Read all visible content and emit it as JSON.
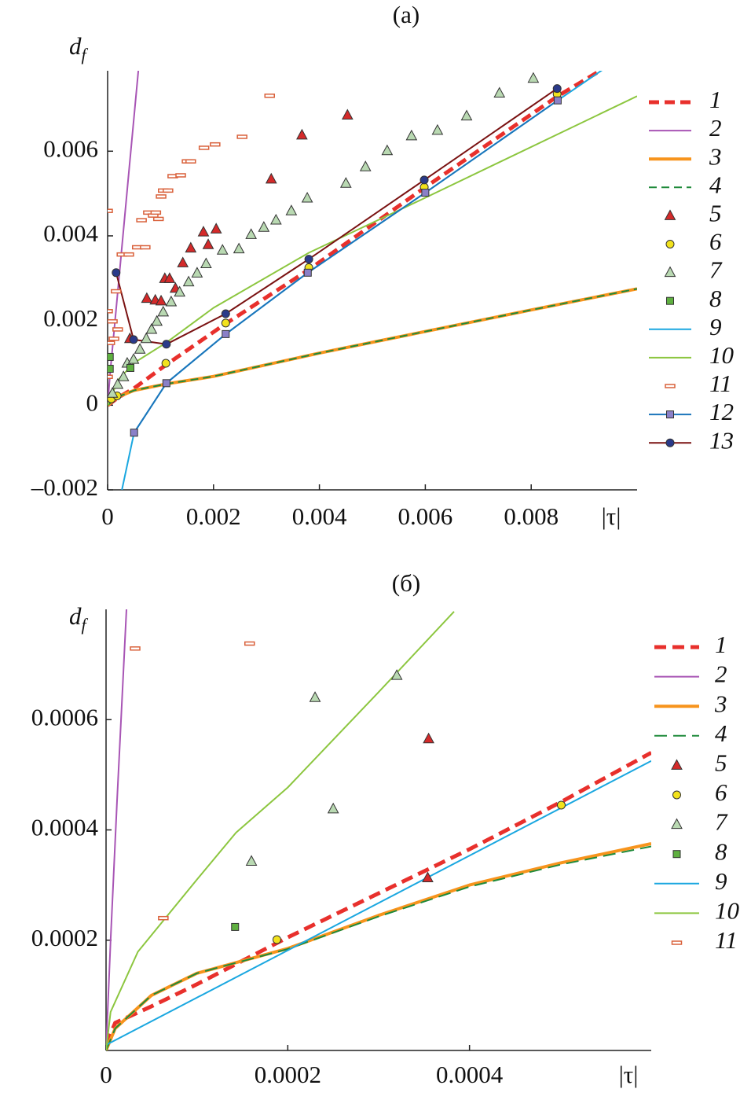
{
  "chart_data": [
    {
      "type": "line",
      "title": "(a)",
      "ylabel": "d",
      "ylabel_sub": "f",
      "xlabel": "|τ|",
      "xlim": [
        0,
        0.01
      ],
      "ylim": [
        -0.002,
        0.0079
      ],
      "xticks": [
        0,
        0.002,
        0.004,
        0.006,
        0.008
      ],
      "yticks": [
        {
          "value": -0.002,
          "label": "–0.002"
        },
        0,
        0.002,
        0.004,
        0.006
      ],
      "legend": "right",
      "series": [
        {
          "name": "1",
          "color": "#e8302c",
          "width": 5,
          "dash": "13 7",
          "line": true,
          "x": [
            0,
            0.0002,
            0.0005,
            0.0011,
            0.0022,
            0.0038,
            0.006,
            0.0085,
            0.0093
          ],
          "values": [
            0,
            0.00018,
            0.0004,
            0.00095,
            0.0019,
            0.0032,
            0.00515,
            0.0073,
            0.0079
          ]
        },
        {
          "name": "2",
          "color": "#a855b5",
          "width": 2,
          "line": true,
          "x": [
            0,
            5e-05,
            0.0002,
            0.0004,
            0.00058
          ],
          "values": [
            0,
            0.0008,
            0.0028,
            0.0055,
            0.0079
          ]
        },
        {
          "name": "3",
          "color": "#f7941d",
          "width": 4,
          "line": true,
          "x": [
            0,
            0.0002,
            0.0005,
            0.0011,
            0.002,
            0.004,
            0.006,
            0.008,
            0.01
          ],
          "values": [
            0,
            0.0002,
            0.00035,
            0.0005,
            0.00068,
            0.00123,
            0.00174,
            0.00225,
            0.00275
          ]
        },
        {
          "name": "4",
          "color": "#1f8a3a",
          "width": 2,
          "dash": "10 6",
          "line": true,
          "x": [
            0,
            0.0002,
            0.0005,
            0.0011,
            0.002,
            0.004,
            0.006,
            0.008,
            0.01
          ],
          "values": [
            0,
            0.0002,
            0.00035,
            0.0005,
            0.00068,
            0.00123,
            0.00174,
            0.00225,
            0.00275
          ]
        },
        {
          "name": "5",
          "color": "#d42a2a",
          "line": false,
          "marker": "triangle",
          "x": [
            0.00042,
            0.00074,
            0.0009,
            0.00101,
            0.00108,
            0.00117,
            0.00128,
            0.00142,
            0.00157,
            0.00181,
            0.0019,
            0.00205,
            0.00309,
            0.00367,
            0.00453
          ],
          "values": [
            0.00157,
            0.00252,
            0.00248,
            0.00246,
            0.00299,
            0.00299,
            0.00276,
            0.00336,
            0.00371,
            0.00409,
            0.00379,
            0.00416,
            0.00534,
            0.00638,
            0.00685
          ]
        },
        {
          "name": "6",
          "color": "#f2e21c",
          "line": false,
          "marker": "circle",
          "x": [
            7e-05,
            0.00018,
            0.0011,
            0.00223,
            0.0038,
            0.00598,
            0.00849
          ],
          "values": [
            0.00015,
            0.00022,
            0.00099,
            0.00194,
            0.00325,
            0.00515,
            0.00735
          ]
        },
        {
          "name": "7",
          "color": "#b9d9b2",
          "line": false,
          "marker": "triangle",
          "x": [
            9e-05,
            0.00019,
            0.0003,
            0.00037,
            0.00049,
            0.00061,
            0.00073,
            0.00083,
            0.00093,
            0.00105,
            0.0012,
            0.00136,
            0.00153,
            0.00169,
            0.00186,
            0.00217,
            0.00248,
            0.00271,
            0.00295,
            0.00318,
            0.00347,
            0.00377,
            0.0045,
            0.00487,
            0.00528,
            0.00574,
            0.00623,
            0.00678,
            0.0074,
            0.00804
          ],
          "values": [
            0.00028,
            0.00049,
            0.00067,
            0.00099,
            0.00108,
            0.00132,
            0.00157,
            0.00179,
            0.00198,
            0.0022,
            0.00244,
            0.00267,
            0.00291,
            0.00312,
            0.00334,
            0.00366,
            0.00369,
            0.00403,
            0.0042,
            0.00437,
            0.00459,
            0.00489,
            0.00524,
            0.00563,
            0.00601,
            0.00636,
            0.00649,
            0.00683,
            0.00737,
            0.00772
          ]
        },
        {
          "name": "8",
          "color": "#5fb040",
          "line": false,
          "marker": "square",
          "x": [
            4e-05,
            4e-05,
            0.00043
          ],
          "values": [
            0.00114,
            0.00086,
            0.00088
          ]
        },
        {
          "name": "9",
          "color": "#1aa7e0",
          "width": 2,
          "line": true,
          "x": [
            0.00027,
            0.0005,
            0.00111,
            0.00223,
            0.00378,
            0.006,
            0.0085,
            0.00938
          ],
          "values": [
            -0.002,
            -0.00065,
            0.00052,
            0.00168,
            0.00313,
            0.00502,
            0.0072,
            0.00795
          ]
        },
        {
          "name": "10",
          "color": "#8cc63f",
          "width": 2,
          "line": true,
          "x": [
            0,
            0.0002,
            0.0005,
            0.0011,
            0.002,
            0.0038,
            0.006,
            0.01
          ],
          "values": [
            0,
            0.0006,
            0.001,
            0.00147,
            0.0023,
            0.0036,
            0.0049,
            0.0073
          ]
        },
        {
          "name": "11",
          "color": "#d9603a",
          "line": false,
          "marker": "dash",
          "x": [
            0,
            0,
            4e-05,
            9e-05,
            0.00016,
            0.00027,
            0.0004,
            0.00056,
            0.00071,
            0.00064,
            0.00077,
            0.00086,
            0.00096,
            0.00091,
            0.00101,
            0.00105,
            0.00114,
            0.00123,
            0.00138,
            0.0015,
            0.00157,
            0.00182,
            0.00203,
            0.00254,
            0.00306,
            0.00019,
            0,
            0.00012
          ],
          "values": [
            0.00459,
            0.00222,
            0.00147,
            0.00198,
            0.00269,
            0.00356,
            0.00356,
            0.00373,
            0.00373,
            0.00437,
            0.00455,
            0.00448,
            0.0044,
            0.00455,
            0.00493,
            0.00507,
            0.00507,
            0.00541,
            0.00543,
            0.00576,
            0.00576,
            0.00608,
            0.00616,
            0.00634,
            0.00731,
            0.00179,
            0.00067,
            0.00157
          ]
        },
        {
          "name": "12",
          "color": "#1b75bb",
          "marker_color": "#8a80c8",
          "width": 2,
          "line": true,
          "marker": "square",
          "x": [
            0.0005,
            0.00111,
            0.00223,
            0.00378,
            0.006,
            0.0085
          ],
          "values": [
            -0.00065,
            0.00052,
            0.00168,
            0.00313,
            0.00502,
            0.0072
          ]
        },
        {
          "name": "13",
          "color": "#7a1212",
          "marker_color": "#2a3a8a",
          "width": 2,
          "line": true,
          "marker": "circle",
          "x": [
            0.00016,
            0.00049,
            0.00111,
            0.00223,
            0.0038,
            0.00598,
            0.00849
          ],
          "values": [
            0.00313,
            0.00155,
            0.00144,
            0.00216,
            0.00345,
            0.00532,
            0.00748
          ]
        }
      ]
    },
    {
      "type": "line",
      "title": "(б)",
      "ylabel": "d",
      "ylabel_sub": "f",
      "xlabel": "|τ|",
      "xlim": [
        0,
        0.0006
      ],
      "ylim": [
        0,
        0.0008
      ],
      "xticks": [
        0,
        0.0002,
        0.0004
      ],
      "yticks": [
        0.0002,
        0.0004,
        0.0006
      ],
      "legend": "right",
      "series": [
        {
          "name": "1",
          "color": "#e8302c",
          "width": 5,
          "dash": "15 8",
          "line": true,
          "x": [
            0,
            1e-05,
            5e-05,
            0.0001,
            0.0002,
            0.0003,
            0.0004,
            0.0005,
            0.0006
          ],
          "values": [
            1e-05,
            5e-05,
            8e-05,
            0.00012,
            0.000205,
            0.000285,
            0.000365,
            0.00045,
            0.00054
          ]
        },
        {
          "name": "2",
          "color": "#a855b5",
          "width": 2,
          "line": true,
          "x": [
            0,
            5e-06,
            1.2e-05,
            2.25e-05
          ],
          "values": [
            0,
            0.0002,
            0.00045,
            0.0008
          ]
        },
        {
          "name": "3",
          "color": "#f7941d",
          "width": 4,
          "line": true,
          "x": [
            0,
            1e-05,
            5e-05,
            0.0001,
            0.0002,
            0.0003,
            0.0004,
            0.0005,
            0.0006
          ],
          "values": [
            0,
            4e-05,
            0.0001,
            0.00014,
            0.000185,
            0.000245,
            0.0003,
            0.00034,
            0.000375
          ]
        },
        {
          "name": "4",
          "color": "#1f8a3a",
          "width": 2,
          "dash": "16 8",
          "line": true,
          "x": [
            0,
            1e-05,
            5e-05,
            0.0001,
            0.0002,
            0.0003,
            0.0004,
            0.0005,
            0.0006
          ],
          "values": [
            0,
            4e-05,
            0.0001,
            0.00014,
            0.000184,
            0.000243,
            0.000297,
            0.000337,
            0.00037
          ]
        },
        {
          "name": "5",
          "color": "#d42a2a",
          "line": false,
          "marker": "triangle",
          "x": [
            0.000354,
            0.000355
          ],
          "values": [
            0.000313,
            0.000565
          ]
        },
        {
          "name": "6",
          "color": "#f2e21c",
          "line": false,
          "marker": "circle",
          "x": [
            0.000188,
            0.000501
          ],
          "values": [
            0.000201,
            0.000445
          ]
        },
        {
          "name": "7",
          "color": "#b9d9b2",
          "line": false,
          "marker": "triangle",
          "x": [
            0.00016,
            0.00025,
            0.00023,
            0.00032
          ],
          "values": [
            0.000343,
            0.000438,
            0.00064,
            0.00068
          ]
        },
        {
          "name": "8",
          "color": "#5fb040",
          "line": false,
          "marker": "square",
          "x": [
            0.000142
          ],
          "values": [
            0.000224
          ]
        },
        {
          "name": "9",
          "color": "#1aa7e0",
          "width": 2,
          "line": true,
          "x": [
            0,
            0.0006
          ],
          "values": [
            1e-05,
            0.000525
          ]
        },
        {
          "name": "10",
          "color": "#8cc63f",
          "width": 2,
          "line": true,
          "x": [
            0,
            5e-06,
            3.5e-05,
            0.0001,
            0.000143,
            0.0002,
            0.0003,
            0.000383
          ],
          "values": [
            0,
            7e-05,
            0.000179,
            0.00031,
            0.000395,
            0.000477,
            0.00065,
            0.000796
          ]
        },
        {
          "name": "11",
          "color": "#d9603a",
          "line": false,
          "marker": "dash",
          "x": [
            3.2e-05,
            0.000158,
            6.3e-05
          ],
          "values": [
            0.000729,
            0.000738,
            0.00024
          ]
        }
      ]
    }
  ]
}
